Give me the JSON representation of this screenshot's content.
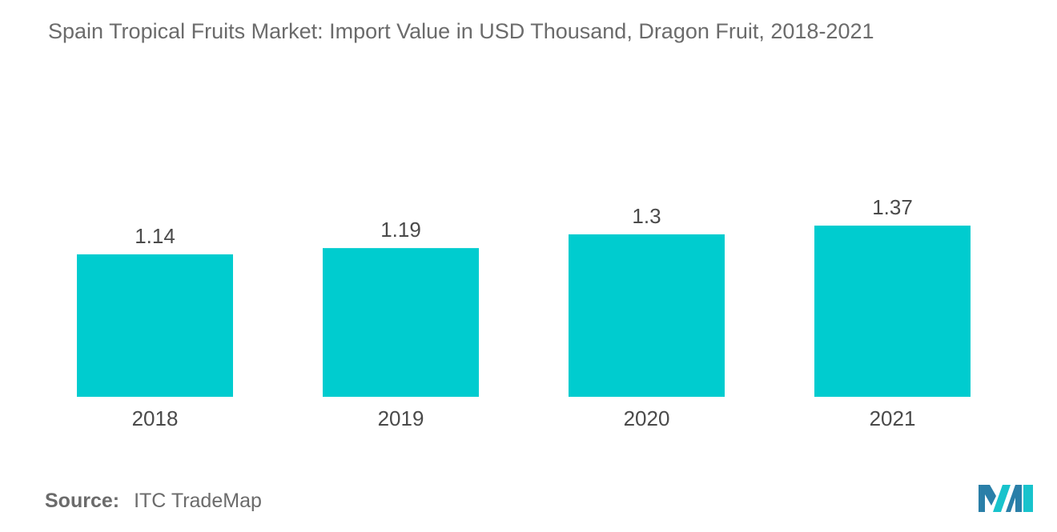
{
  "chart_data": {
    "type": "bar",
    "title": "Spain Tropical Fruits Market: Import Value in USD Thousand, Dragon Fruit, 2018-2021",
    "categories": [
      "2018",
      "2019",
      "2020",
      "2021"
    ],
    "values": [
      1.14,
      1.19,
      1.3,
      1.37
    ],
    "value_labels": [
      "1.14",
      "1.19",
      "1.3",
      "1.37"
    ],
    "xlabel": "",
    "ylabel": "",
    "ylim": [
      0,
      1.37
    ],
    "grid": false,
    "legend": "none",
    "bar_color": "#00cccf"
  },
  "source": {
    "key": "Source:",
    "value": "ITC TradeMap"
  },
  "logo": {
    "icon": "mordor-intelligence-logo-icon",
    "colors": [
      "#2a7fa8",
      "#18c3cc"
    ]
  }
}
